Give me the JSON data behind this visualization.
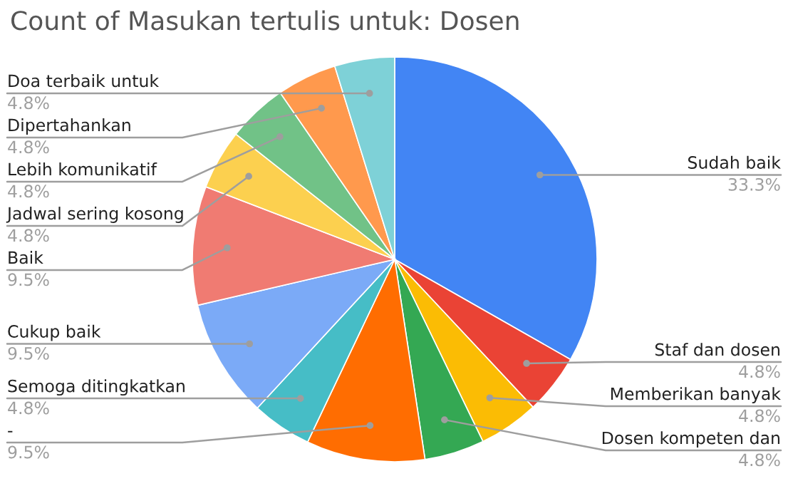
{
  "chart_data": {
    "type": "pie",
    "title": "Count of Masukan tertulis untuk: Dosen",
    "categories": [
      "Sudah baik",
      "Staf dan dosen",
      "Memberikan banyak",
      "Dosen kompeten dan",
      "-",
      "Semoga ditingkatkan",
      "Cukup baik",
      "Baik",
      "Jadwal sering kosong",
      "Lebih komunikatif",
      "Dipertahankan",
      "Doa terbaik untuk"
    ],
    "values": [
      33.3,
      4.8,
      4.8,
      4.8,
      9.5,
      4.8,
      9.5,
      9.5,
      4.8,
      4.8,
      4.8,
      4.8
    ],
    "value_labels": [
      "33.3%",
      "4.8%",
      "4.8%",
      "4.8%",
      "9.5%",
      "4.8%",
      "9.5%",
      "9.5%",
      "4.8%",
      "4.8%",
      "4.8%",
      "4.8%"
    ],
    "colors": [
      "#4285f4",
      "#ea4335",
      "#fbbc04",
      "#34a853",
      "#ff6d01",
      "#46bdc6",
      "#7baaf7",
      "#f07b72",
      "#fcd04f",
      "#71c287",
      "#ff994d",
      "#7ed1d7"
    ],
    "legend": false
  }
}
